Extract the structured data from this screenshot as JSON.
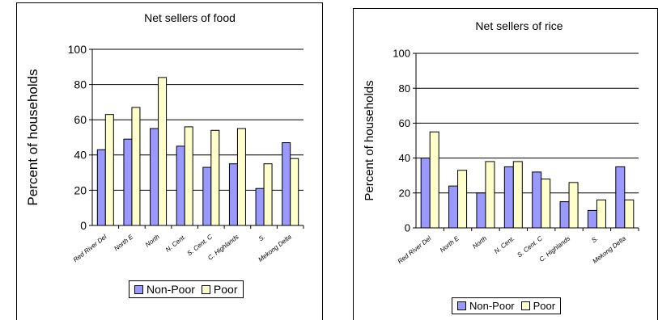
{
  "charts": [
    {
      "chart_data": {
        "type": "bar",
        "title": "Net sellers of food",
        "ylabel": "Percent of households",
        "xlabel": "",
        "ylim": [
          0,
          100
        ],
        "yticks": [
          0,
          20,
          40,
          60,
          80,
          100
        ],
        "grid": true,
        "legend": "bottom",
        "categories": [
          "Red River Del",
          "North E",
          "North",
          "N. Cent.",
          "S. Cent. C",
          "C. Highlands",
          "S.",
          "Mekong Delta"
        ],
        "series": [
          {
            "name": "Non-Poor",
            "color": "#9999ff",
            "values": [
              43,
              49,
              55,
              45,
              33,
              35,
              21,
              47
            ]
          },
          {
            "name": "Poor",
            "color": "#ffffcc",
            "values": [
              63,
              67,
              84,
              56,
              54,
              55,
              35,
              38
            ]
          }
        ]
      }
    },
    {
      "chart_data": {
        "type": "bar",
        "title": "Net sellers of rice",
        "ylabel": "Percent of households",
        "xlabel": "",
        "ylim": [
          0,
          100
        ],
        "yticks": [
          0,
          20,
          40,
          60,
          80,
          100
        ],
        "grid": true,
        "legend": "bottom",
        "categories": [
          "Red River Del",
          "North E",
          "North",
          "N. Cent.",
          "S. Cent. C",
          "C. Highlands",
          "S.",
          "Mekong Delta"
        ],
        "series": [
          {
            "name": "Non-Poor",
            "color": "#9999ff",
            "values": [
              40,
              24,
              20,
              35,
              32,
              15,
              10,
              35
            ]
          },
          {
            "name": "Poor",
            "color": "#ffffcc",
            "values": [
              55,
              33,
              38,
              38,
              28,
              26,
              16,
              16
            ]
          }
        ]
      }
    }
  ]
}
